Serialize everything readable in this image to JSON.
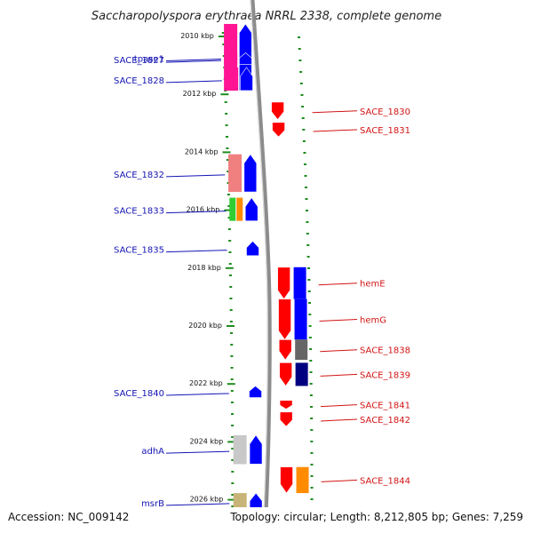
{
  "title": "Saccharopolyspora erythraea NRRL 2338, complete genome",
  "footer": {
    "accession": "Accession: NC_009142",
    "topology": "Topology: circular; Length: 8,212,805 bp; Genes: 7,259"
  },
  "ticks": [
    "2010 kbp",
    "2012 kbp",
    "2014 kbp",
    "2016 kbp",
    "2018 kbp",
    "2020 kbp",
    "2022 kbp",
    "2024 kbp",
    "2026 kbp"
  ],
  "colors": {
    "left_label": "#1414b4",
    "right_label": "#d21414",
    "tick_green": "#1e8c1e",
    "backbone": "#8c8c8c"
  },
  "features": [
    {
      "name": "tpase1",
      "side": "left",
      "strand": "+",
      "start_kbp": 2009.6,
      "end_kbp": 2011.9,
      "color": "#0000ff",
      "cog_color": "#ff1493"
    },
    {
      "name": "SACE_1827",
      "side": "left",
      "strand": "+",
      "start_kbp": 2010.6,
      "end_kbp": 2011.0,
      "color": "#0000ff",
      "cog_color": "#ff1493"
    },
    {
      "name": "SACE_1828",
      "side": "left",
      "strand": "+",
      "start_kbp": 2011.1,
      "end_kbp": 2011.9,
      "color": "#0000ff",
      "cog_color": "#ff1493"
    },
    {
      "name": "SACE_1830",
      "side": "right",
      "strand": "-",
      "start_kbp": 2012.3,
      "end_kbp": 2012.9,
      "color": "#ff0000"
    },
    {
      "name": "SACE_1831",
      "side": "right",
      "strand": "-",
      "start_kbp": 2013.0,
      "end_kbp": 2013.5,
      "color": "#ff0000"
    },
    {
      "name": "SACE_1832",
      "side": "left",
      "strand": "+",
      "start_kbp": 2014.1,
      "end_kbp": 2015.4,
      "color": "#0000ff",
      "cog_color": "#f08080"
    },
    {
      "name": "SACE_1833",
      "side": "left",
      "strand": "+",
      "start_kbp": 2015.6,
      "end_kbp": 2016.4,
      "color": "#0000ff",
      "cog_color": "#32cd32",
      "cog_color2": "#ff8c00"
    },
    {
      "name": "SACE_1835",
      "side": "left",
      "strand": "+",
      "start_kbp": 2017.1,
      "end_kbp": 2017.6,
      "color": "#0000ff"
    },
    {
      "name": "hemE",
      "side": "right",
      "strand": "-",
      "start_kbp": 2018.0,
      "end_kbp": 2019.1,
      "color": "#ff0000",
      "cog_color": "#0000ff"
    },
    {
      "name": "hemG",
      "side": "right",
      "strand": "-",
      "start_kbp": 2019.1,
      "end_kbp": 2020.5,
      "color": "#ff0000",
      "cog_color": "#0000ff"
    },
    {
      "name": "SACE_1838",
      "side": "right",
      "strand": "-",
      "start_kbp": 2020.5,
      "end_kbp": 2021.2,
      "color": "#ff0000",
      "cog_color": "#666666"
    },
    {
      "name": "SACE_1839",
      "side": "right",
      "strand": "-",
      "start_kbp": 2021.3,
      "end_kbp": 2022.1,
      "color": "#ff0000",
      "cog_color": "#000080"
    },
    {
      "name": "SACE_1840",
      "side": "left",
      "strand": "+",
      "start_kbp": 2022.1,
      "end_kbp": 2022.5,
      "color": "#0000ff"
    },
    {
      "name": "SACE_1841",
      "side": "right",
      "strand": "-",
      "start_kbp": 2022.6,
      "end_kbp": 2022.9,
      "color": "#ff0000"
    },
    {
      "name": "SACE_1842",
      "side": "right",
      "strand": "-",
      "start_kbp": 2023.0,
      "end_kbp": 2023.5,
      "color": "#ff0000"
    },
    {
      "name": "adhA",
      "side": "left",
      "strand": "+",
      "start_kbp": 2023.8,
      "end_kbp": 2024.8,
      "color": "#0000ff",
      "cog_color": "#c8c8c8"
    },
    {
      "name": "SACE_1844",
      "side": "right",
      "strand": "-",
      "start_kbp": 2024.9,
      "end_kbp": 2025.8,
      "color": "#ff0000",
      "cog_color": "#ff8c00"
    },
    {
      "name": "msrB",
      "side": "left",
      "strand": "+",
      "start_kbp": 2025.8,
      "end_kbp": 2026.4,
      "color": "#0000ff",
      "cog_color": "#c8b478"
    }
  ]
}
